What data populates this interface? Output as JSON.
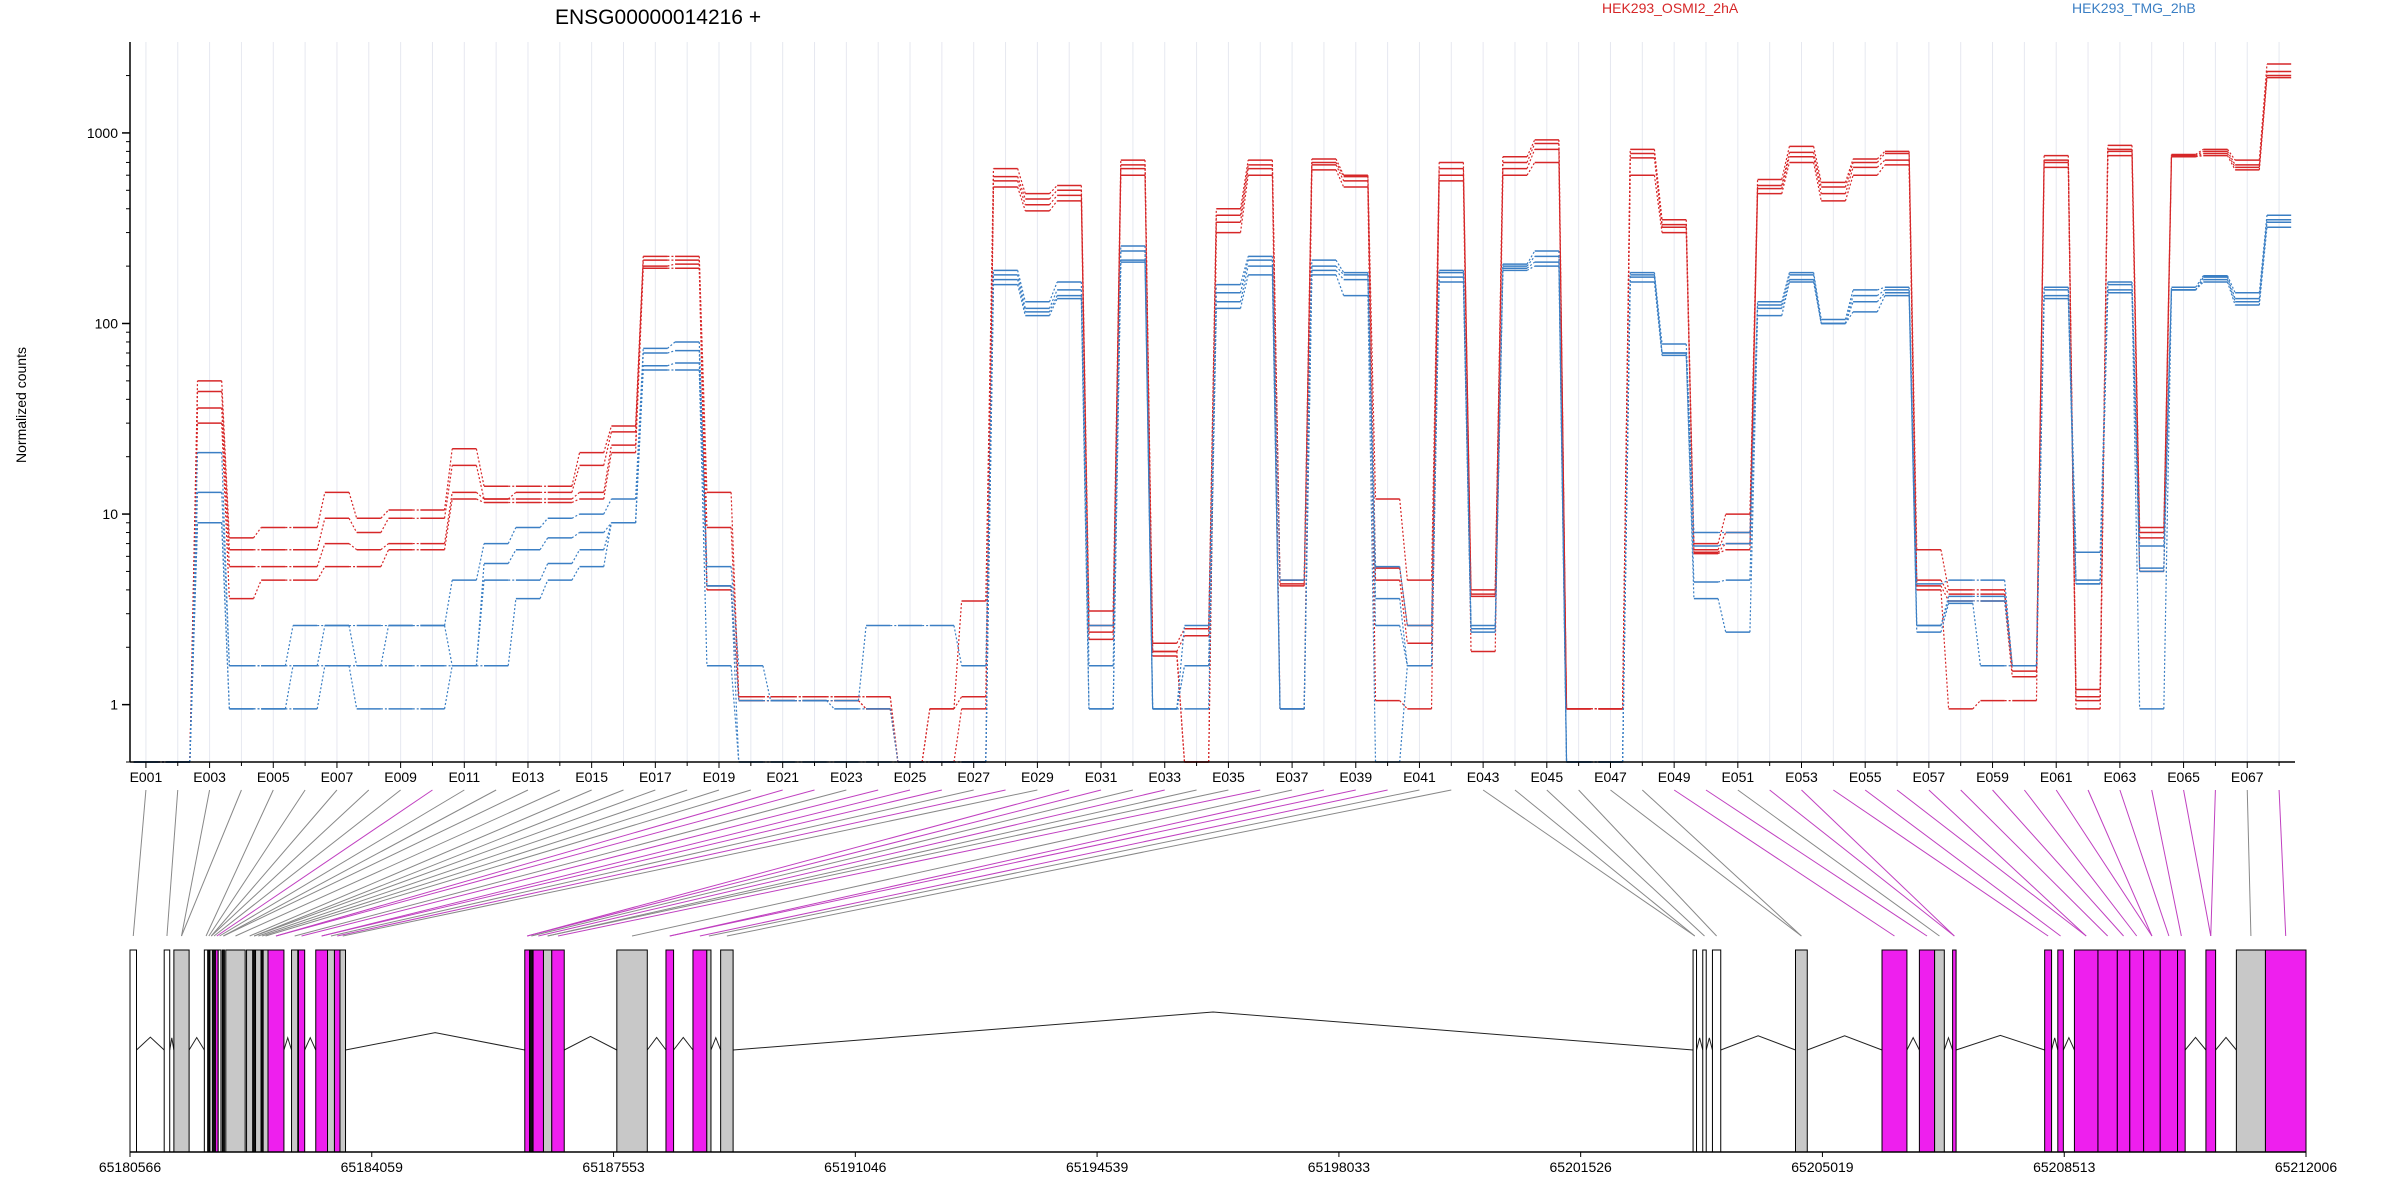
{
  "chart_data": {
    "type": "line",
    "title": "ENSG00000014216 +",
    "ylabel": "Normalized counts",
    "yscale": "log",
    "yticks": [
      1,
      10,
      100,
      1000
    ],
    "ylim": [
      0.5,
      3000
    ],
    "legend": [
      {
        "name": "HEK293_OSMI2_2hA",
        "color": "#d62728"
      },
      {
        "name": "HEK293_TMG_2hB",
        "color": "#3b7fc4"
      }
    ],
    "colors": {
      "osmi": "#d62728",
      "tmg": "#3b7fc4",
      "exon_gray": "#c8c8c8",
      "exon_magenta": "#ee1fee",
      "link_gray": "#888888",
      "link_magenta": "#c040c0"
    },
    "exon_count": 68,
    "exon_tick_labels": [
      "E001",
      "E003",
      "E005",
      "E007",
      "E009",
      "E011",
      "E013",
      "E015",
      "E017",
      "E019",
      "E021",
      "E023",
      "E025",
      "E027",
      "E029",
      "E031",
      "E033",
      "E035",
      "E037",
      "E039",
      "E041",
      "E043",
      "E045",
      "E047",
      "E049",
      "E051",
      "E053",
      "E055",
      "E057",
      "E059",
      "E061",
      "E063",
      "E065",
      "E067"
    ],
    "series": [
      {
        "name": "HEK293_OSMI2_2hA",
        "group": "osmi",
        "values": [
          0.5,
          0.5,
          50,
          7.5,
          8.5,
          8.5,
          13,
          9.5,
          10.5,
          10.5,
          22,
          14,
          14,
          14,
          21,
          29,
          225,
          225,
          13,
          1.1,
          1.1,
          1.1,
          1.1,
          1.1,
          0.5,
          0.95,
          3.5,
          650,
          480,
          530,
          3.1,
          720,
          2.1,
          2.5,
          400,
          720,
          4.5,
          730,
          600,
          12,
          4.5,
          700,
          4,
          750,
          920,
          0.95,
          0.95,
          820,
          350,
          7,
          10,
          570,
          850,
          550,
          730,
          800,
          6.5,
          4,
          4,
          1.6,
          760,
          1.2,
          860,
          8.5,
          770,
          820,
          720,
          2300
        ]
      },
      {
        "name": "HEK293_OSMI2_2hA",
        "group": "osmi",
        "values": [
          0.5,
          0.5,
          44,
          6.5,
          6.5,
          6.5,
          9.5,
          8,
          9.5,
          9.5,
          18,
          12,
          13,
          13,
          18,
          27,
          215,
          215,
          8.5,
          1.1,
          1.1,
          1.1,
          1.1,
          1.1,
          0.5,
          0.95,
          1.1,
          590,
          450,
          500,
          2.6,
          680,
          1.9,
          2.3,
          370,
          680,
          4.3,
          700,
          590,
          5.2,
          2.6,
          650,
          3.8,
          700,
          880,
          0.95,
          0.95,
          780,
          330,
          6.5,
          8,
          530,
          790,
          520,
          700,
          780,
          4.5,
          3.8,
          3.8,
          1.5,
          720,
          1.1,
          820,
          8,
          760,
          800,
          680,
          2100
        ]
      },
      {
        "name": "HEK293_OSMI2_2hA",
        "group": "osmi",
        "values": [
          0.5,
          0.5,
          36,
          5.3,
          5.3,
          5.3,
          7,
          6.5,
          7,
          7,
          13,
          12,
          12,
          12,
          13,
          23,
          200,
          205,
          4.2,
          1.05,
          1.05,
          1.05,
          1.05,
          0.95,
          0.5,
          0.5,
          0.95,
          560,
          420,
          470,
          2.4,
          650,
          1.9,
          0.5,
          340,
          650,
          4.2,
          680,
          560,
          4.5,
          2.1,
          600,
          3.7,
          650,
          820,
          0.95,
          0.95,
          740,
          320,
          6.3,
          7,
          510,
          750,
          480,
          660,
          720,
          4.2,
          3.5,
          3.5,
          1.4,
          700,
          1.05,
          800,
          7.5,
          750,
          780,
          660,
          2000
        ]
      },
      {
        "name": "HEK293_OSMI2_2hA",
        "group": "osmi",
        "values": [
          0.5,
          0.5,
          30,
          3.6,
          4.5,
          4.5,
          5.3,
          5.3,
          6.5,
          6.5,
          12,
          11.5,
          11.5,
          11.5,
          12,
          21,
          195,
          195,
          4,
          1.05,
          1.05,
          1.05,
          1.05,
          0.95,
          0.5,
          0.5,
          0.5,
          520,
          390,
          440,
          2.2,
          600,
          1.8,
          0.5,
          300,
          600,
          0.95,
          640,
          520,
          1.05,
          0.95,
          560,
          1.9,
          600,
          700,
          0.95,
          0.95,
          600,
          300,
          6.2,
          6.5,
          480,
          700,
          440,
          600,
          680,
          4,
          0.95,
          1.05,
          1.05,
          660,
          0.95,
          760,
          5,
          750,
          760,
          640,
          1950
        ]
      },
      {
        "name": "HEK293_TMG_2hB",
        "group": "tmg",
        "values": [
          0.5,
          0.5,
          21,
          1.6,
          1.6,
          2.6,
          2.6,
          2.6,
          2.6,
          2.6,
          4.5,
          7,
          8.5,
          9.5,
          10,
          12,
          74,
          80,
          5.3,
          1.6,
          1.05,
          1.05,
          1.05,
          2.6,
          2.6,
          2.6,
          1.6,
          190,
          130,
          165,
          2.6,
          255,
          0.95,
          2.6,
          160,
          225,
          4.5,
          215,
          185,
          5.3,
          2.6,
          190,
          2.6,
          205,
          240,
          0.5,
          0.5,
          185,
          78,
          8,
          8,
          130,
          185,
          105,
          150,
          155,
          4.3,
          4.5,
          4.5,
          1.6,
          155,
          6.3,
          165,
          6.8,
          155,
          178,
          145,
          370
        ]
      },
      {
        "name": "HEK293_TMG_2hB",
        "group": "tmg",
        "values": [
          0.5,
          0.5,
          13,
          1.6,
          1.6,
          1.6,
          2.6,
          1.6,
          2.6,
          2.6,
          1.6,
          5.5,
          6.5,
          7.5,
          8,
          9,
          70,
          72,
          4.2,
          1.05,
          1.05,
          1.05,
          0.95,
          0.95,
          0.5,
          0.5,
          0.5,
          180,
          120,
          150,
          1.6,
          240,
          0.95,
          1.6,
          145,
          215,
          0.95,
          200,
          180,
          3.6,
          1.6,
          185,
          2.5,
          200,
          225,
          0.5,
          0.5,
          180,
          70,
          6.8,
          7,
          125,
          180,
          100,
          140,
          150,
          2.6,
          3.7,
          3.7,
          1.6,
          150,
          4.5,
          160,
          5.2,
          150,
          175,
          135,
          350
        ]
      },
      {
        "name": "HEK293_TMG_2hB",
        "group": "tmg",
        "values": [
          0.5,
          0.5,
          9,
          0.95,
          0.95,
          1.6,
          1.6,
          1.6,
          1.6,
          1.6,
          1.6,
          4.5,
          4.5,
          5.5,
          6.5,
          9,
          60,
          62,
          4.2,
          0.5,
          0.5,
          0.5,
          0.5,
          0.5,
          0.5,
          0.5,
          0.5,
          170,
          115,
          140,
          0.95,
          215,
          0.95,
          1.6,
          130,
          200,
          0.95,
          190,
          170,
          2.6,
          1.6,
          175,
          2.5,
          195,
          210,
          0.5,
          0.5,
          175,
          70,
          4.4,
          4.5,
          120,
          170,
          100,
          130,
          145,
          2.6,
          3.5,
          3.5,
          1.6,
          140,
          4.3,
          150,
          5,
          150,
          170,
          130,
          340
        ]
      },
      {
        "name": "HEK293_TMG_2hB",
        "group": "tmg",
        "values": [
          0.5,
          0.5,
          9,
          0.95,
          0.95,
          0.95,
          1.6,
          0.95,
          0.95,
          0.95,
          1.6,
          1.6,
          3.6,
          4.5,
          5.3,
          9,
          57,
          57,
          1.6,
          0.5,
          0.5,
          0.5,
          0.5,
          0.5,
          0.5,
          0.5,
          0.5,
          160,
          110,
          135,
          0.95,
          210,
          0.95,
          0.95,
          120,
          180,
          0.95,
          180,
          140,
          0.5,
          1.6,
          165,
          2.4,
          190,
          200,
          0.5,
          0.5,
          165,
          68,
          3.6,
          2.4,
          110,
          165,
          100,
          115,
          140,
          2.4,
          3.4,
          1.6,
          1.6,
          135,
          4.3,
          145,
          0.95,
          150,
          165,
          125,
          320
        ]
      }
    ],
    "genomic_ticks": [
      "65180566",
      "65184059",
      "65187553",
      "65191046",
      "65194539",
      "65198033",
      "65201526",
      "65205019",
      "65208513",
      "65212006"
    ],
    "exon_blocks": [
      {
        "start": 65180566,
        "end": 65180660,
        "fill": "white"
      },
      {
        "start": 65181060,
        "end": 65181140,
        "fill": "white"
      },
      {
        "start": 65181200,
        "end": 65181420,
        "fill": "gray"
      },
      {
        "start": 65181640,
        "end": 65181690,
        "fill": "white"
      },
      {
        "start": 65181690,
        "end": 65181720,
        "fill": "black"
      },
      {
        "start": 65181720,
        "end": 65181760,
        "fill": "gray"
      },
      {
        "start": 65181760,
        "end": 65181800,
        "fill": "black"
      },
      {
        "start": 65181800,
        "end": 65181840,
        "fill": "magenta"
      },
      {
        "start": 65181840,
        "end": 65181880,
        "fill": "white"
      },
      {
        "start": 65181900,
        "end": 65181930,
        "fill": "black"
      },
      {
        "start": 65181950,
        "end": 65182230,
        "fill": "gray"
      },
      {
        "start": 65182250,
        "end": 65182340,
        "fill": "gray"
      },
      {
        "start": 65182340,
        "end": 65182380,
        "fill": "black"
      },
      {
        "start": 65182380,
        "end": 65182460,
        "fill": "gray"
      },
      {
        "start": 65182460,
        "end": 65182490,
        "fill": "black"
      },
      {
        "start": 65182490,
        "end": 65182560,
        "fill": "gray"
      },
      {
        "start": 65182560,
        "end": 65182790,
        "fill": "magenta"
      },
      {
        "start": 65182900,
        "end": 65182990,
        "fill": "gray"
      },
      {
        "start": 65183000,
        "end": 65183090,
        "fill": "magenta"
      },
      {
        "start": 65183250,
        "end": 65183420,
        "fill": "magenta"
      },
      {
        "start": 65183420,
        "end": 65183520,
        "fill": "gray"
      },
      {
        "start": 65183520,
        "end": 65183600,
        "fill": "magenta"
      },
      {
        "start": 65183600,
        "end": 65183680,
        "fill": "gray"
      },
      {
        "start": 65186270,
        "end": 65186340,
        "fill": "magenta"
      },
      {
        "start": 65186340,
        "end": 65186390,
        "fill": "black"
      },
      {
        "start": 65186390,
        "end": 65186540,
        "fill": "magenta"
      },
      {
        "start": 65186540,
        "end": 65186660,
        "fill": "gray"
      },
      {
        "start": 65186660,
        "end": 65186840,
        "fill": "magenta"
      },
      {
        "start": 65187600,
        "end": 65188040,
        "fill": "gray"
      },
      {
        "start": 65188310,
        "end": 65188420,
        "fill": "magenta"
      },
      {
        "start": 65188700,
        "end": 65188900,
        "fill": "magenta"
      },
      {
        "start": 65188900,
        "end": 65188960,
        "fill": "gray"
      },
      {
        "start": 65189100,
        "end": 65189280,
        "fill": "gray"
      },
      {
        "start": 65203150,
        "end": 65203200,
        "fill": "white"
      },
      {
        "start": 65203290,
        "end": 65203340,
        "fill": "white"
      },
      {
        "start": 65203430,
        "end": 65203550,
        "fill": "white"
      },
      {
        "start": 65204630,
        "end": 65204800,
        "fill": "gray"
      },
      {
        "start": 65205880,
        "end": 65206240,
        "fill": "magenta"
      },
      {
        "start": 65206420,
        "end": 65206640,
        "fill": "magenta"
      },
      {
        "start": 65206640,
        "end": 65206780,
        "fill": "gray"
      },
      {
        "start": 65206900,
        "end": 65206950,
        "fill": "magenta"
      },
      {
        "start": 65208230,
        "end": 65208330,
        "fill": "magenta"
      },
      {
        "start": 65208420,
        "end": 65208500,
        "fill": "magenta"
      },
      {
        "start": 65208660,
        "end": 65209000,
        "fill": "magenta"
      },
      {
        "start": 65209000,
        "end": 65209280,
        "fill": "magenta"
      },
      {
        "start": 65209280,
        "end": 65209460,
        "fill": "magenta"
      },
      {
        "start": 65209460,
        "end": 65209660,
        "fill": "magenta"
      },
      {
        "start": 65209660,
        "end": 65209900,
        "fill": "magenta"
      },
      {
        "start": 65209900,
        "end": 65210150,
        "fill": "magenta"
      },
      {
        "start": 65210150,
        "end": 65210260,
        "fill": "magenta"
      },
      {
        "start": 65210560,
        "end": 65210700,
        "fill": "magenta"
      },
      {
        "start": 65211000,
        "end": 65211420,
        "fill": "gray"
      },
      {
        "start": 65211420,
        "end": 65212006,
        "fill": "magenta"
      }
    ]
  }
}
